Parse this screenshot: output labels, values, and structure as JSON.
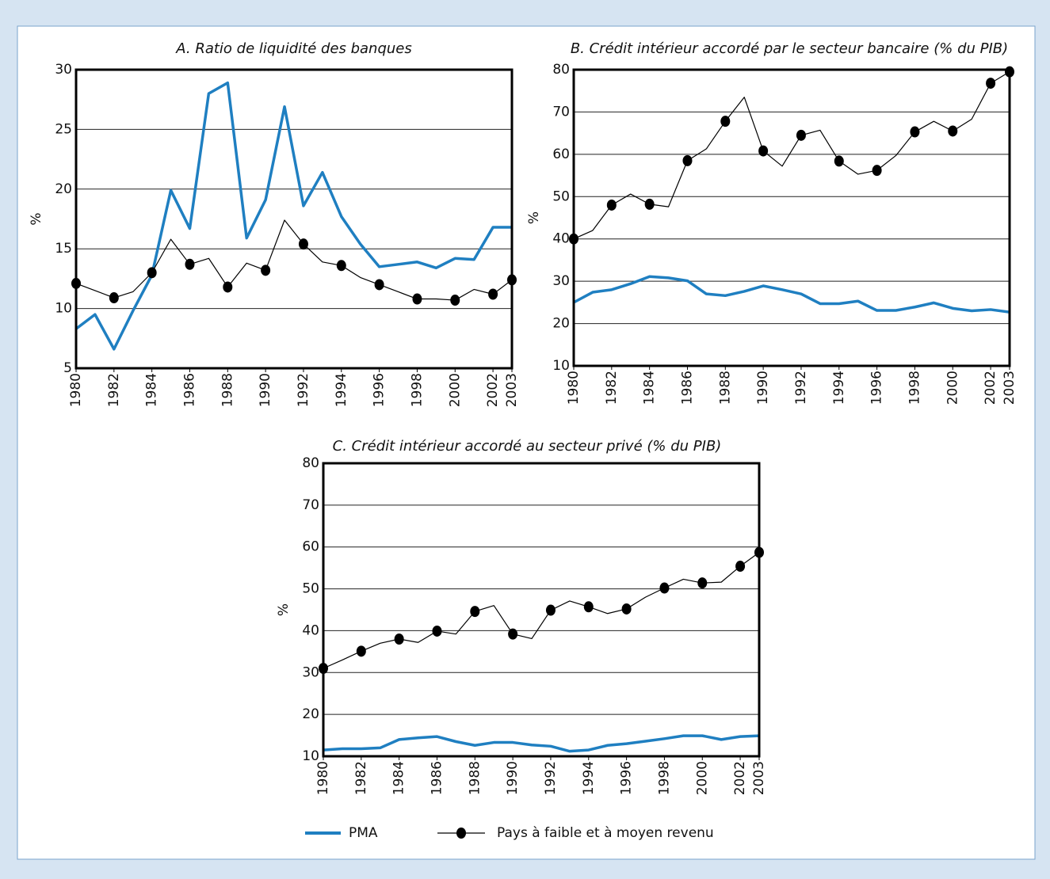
{
  "chart_data": [
    {
      "type": "line",
      "title": "A. Ratio de liquidité des banques",
      "ylabel": "%",
      "x": [
        1980,
        1981,
        1982,
        1983,
        1984,
        1985,
        1986,
        1987,
        1988,
        1989,
        1990,
        1991,
        1992,
        1993,
        1994,
        1995,
        1996,
        1997,
        1998,
        1999,
        2000,
        2001,
        2002,
        2003
      ],
      "xlim": [
        1980,
        2003
      ],
      "xticks": [
        1980,
        1982,
        1984,
        1986,
        1988,
        1990,
        1992,
        1994,
        1996,
        1998,
        2000,
        2002,
        2003
      ],
      "ylim": [
        5,
        30
      ],
      "yticks": [
        5,
        10,
        15,
        20,
        25,
        30
      ],
      "grid": true,
      "series": [
        {
          "name": "PMA",
          "color": "#1f7fc1",
          "values": [
            8.3,
            9.5,
            6.6,
            9.8,
            12.8,
            19.9,
            16.7,
            28.0,
            28.9,
            15.9,
            19.1,
            26.9,
            18.6,
            21.4,
            17.7,
            15.4,
            13.5,
            13.7,
            13.9,
            13.4,
            14.2,
            14.1,
            16.8,
            16.8
          ]
        },
        {
          "name": "Pays à faible et à moyen revenu",
          "color": "#000000",
          "values": [
            12.1,
            11.5,
            10.9,
            11.4,
            13.0,
            15.8,
            13.7,
            14.2,
            11.8,
            13.8,
            13.2,
            17.4,
            15.4,
            13.9,
            13.6,
            12.6,
            12.0,
            11.4,
            10.8,
            10.8,
            10.7,
            11.6,
            11.2,
            12.4
          ]
        }
      ]
    },
    {
      "type": "line",
      "title": "B. Crédit intérieur accordé par le secteur bancaire (% du PIB)",
      "ylabel": "%",
      "x": [
        1980,
        1981,
        1982,
        1983,
        1984,
        1985,
        1986,
        1987,
        1988,
        1989,
        1990,
        1991,
        1992,
        1993,
        1994,
        1995,
        1996,
        1997,
        1998,
        1999,
        2000,
        2001,
        2002,
        2003
      ],
      "xlim": [
        1980,
        2003
      ],
      "xticks": [
        1980,
        1982,
        1984,
        1986,
        1988,
        1990,
        1992,
        1994,
        1996,
        1998,
        2000,
        2002,
        2003
      ],
      "ylim": [
        10,
        80
      ],
      "yticks": [
        10,
        20,
        30,
        40,
        50,
        60,
        70,
        80
      ],
      "grid": true,
      "series": [
        {
          "name": "PMA",
          "color": "#1f7fc1",
          "values": [
            25.0,
            27.4,
            28.0,
            29.4,
            31.1,
            30.8,
            30.1,
            27.0,
            26.6,
            27.6,
            28.9,
            28.0,
            27.0,
            24.7,
            24.7,
            25.3,
            23.1,
            23.1,
            23.9,
            24.9,
            23.6,
            23.0,
            23.3,
            22.7
          ]
        },
        {
          "name": "Pays à faible et à moyen revenu",
          "color": "#000000",
          "values": [
            40.0,
            42.0,
            48.0,
            50.6,
            48.2,
            47.6,
            58.5,
            61.3,
            67.8,
            73.5,
            60.8,
            57.2,
            64.5,
            65.7,
            58.4,
            55.3,
            56.2,
            59.7,
            65.3,
            67.8,
            65.5,
            68.3,
            76.8,
            79.5
          ]
        }
      ]
    },
    {
      "type": "line",
      "title": "C. Crédit intérieur accordé au secteur privé (% du PIB)",
      "ylabel": "%",
      "x": [
        1980,
        1981,
        1982,
        1983,
        1984,
        1985,
        1986,
        1987,
        1988,
        1989,
        1990,
        1991,
        1992,
        1993,
        1994,
        1995,
        1996,
        1997,
        1998,
        1999,
        2000,
        2001,
        2002,
        2003
      ],
      "xlim": [
        1980,
        2003
      ],
      "xticks": [
        1980,
        1982,
        1984,
        1986,
        1988,
        1990,
        1992,
        1994,
        1996,
        1998,
        2000,
        2002,
        2003
      ],
      "ylim": [
        10,
        80
      ],
      "yticks": [
        10,
        20,
        30,
        40,
        50,
        60,
        70,
        80
      ],
      "grid": true,
      "series": [
        {
          "name": "PMA",
          "color": "#1f7fc1",
          "values": [
            11.5,
            11.8,
            11.8,
            12.0,
            14.0,
            14.4,
            14.7,
            13.5,
            12.6,
            13.3,
            13.3,
            12.7,
            12.4,
            11.2,
            11.5,
            12.6,
            13.0,
            13.6,
            14.2,
            14.9,
            14.9,
            14.0,
            14.7,
            14.9
          ]
        },
        {
          "name": "Pays à faible et à moyen revenu",
          "color": "#000000",
          "values": [
            31.0,
            33.0,
            35.1,
            37.0,
            38.0,
            37.2,
            39.9,
            39.2,
            44.6,
            46.0,
            39.2,
            38.1,
            44.9,
            47.1,
            45.7,
            44.1,
            45.2,
            48.0,
            50.2,
            52.3,
            51.4,
            51.6,
            55.4,
            58.7
          ]
        }
      ]
    }
  ]
}
